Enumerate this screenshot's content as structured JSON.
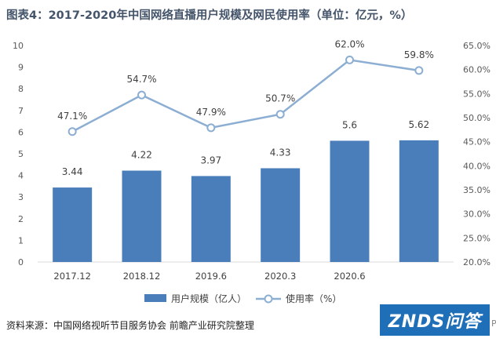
{
  "title": "图表4：2017-2020年中国网络直播用户规模及网民使用率（单位：亿元，%）",
  "source": "资料来源：中国网络视听节目服务协会 前瞻产业研究院整理",
  "logo_text": "ZNDS问答",
  "logo_tail": "P",
  "colors": {
    "bar": "#4a7ebb",
    "line": "#8caed3",
    "marker_fill": "#ffffff",
    "title": "#44546a",
    "logo_bg": "#1f6fb8"
  },
  "chart_data": {
    "type": "bar+line",
    "categories": [
      "2017.12",
      "2018.12",
      "2019.6",
      "2020.3",
      "2020.6",
      ""
    ],
    "series": [
      {
        "name": "用户规模（亿人）",
        "type": "bar",
        "axis": "left",
        "values": [
          3.44,
          4.22,
          3.97,
          4.33,
          5.6,
          5.62
        ],
        "data_labels": [
          "3.44",
          "4.22",
          "3.97",
          "4.33",
          "5.6",
          "5.62"
        ]
      },
      {
        "name": "使用率（%）",
        "type": "line",
        "axis": "right",
        "values": [
          47.1,
          54.7,
          47.9,
          50.7,
          62.0,
          59.8
        ],
        "data_labels": [
          "47.1%",
          "54.7%",
          "47.9%",
          "50.7%",
          "62.0%",
          "59.8%"
        ]
      }
    ],
    "y_left": {
      "min": 0,
      "max": 10,
      "ticks": [
        "0",
        "1",
        "2",
        "3",
        "4",
        "5",
        "6",
        "7",
        "8",
        "9",
        "10"
      ]
    },
    "y_right": {
      "min": 20,
      "max": 65,
      "ticks": [
        "20.0%",
        "25.0%",
        "30.0%",
        "35.0%",
        "40.0%",
        "45.0%",
        "50.0%",
        "55.0%",
        "60.0%",
        "65.0%"
      ]
    },
    "grid": false,
    "legend": "bottom"
  }
}
